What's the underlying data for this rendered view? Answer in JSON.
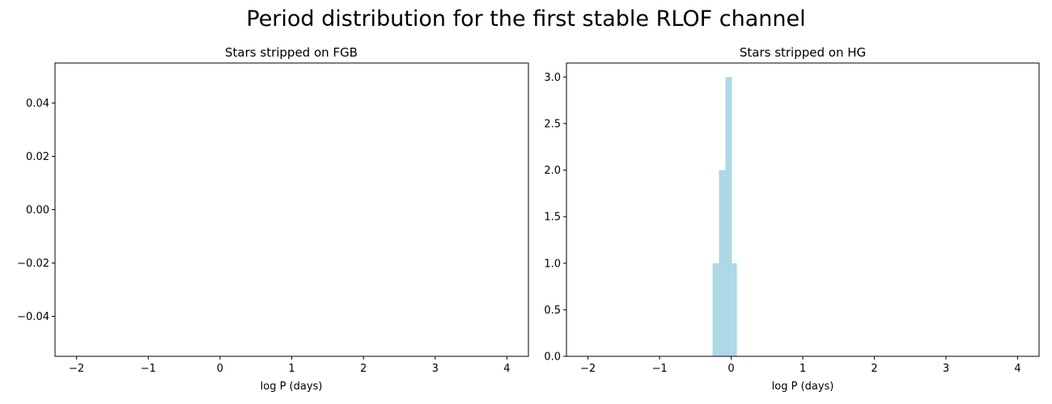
{
  "figure": {
    "title": "Period distribution for the first stable RLOF channel"
  },
  "chart_data": [
    {
      "type": "bar",
      "title": "Stars stripped on FGB",
      "xlabel": "log P (days)",
      "ylabel": "",
      "xlim": [
        -2.3,
        4.3
      ],
      "ylim": [
        -0.055,
        0.055
      ],
      "xticks": [
        -2,
        -1,
        0,
        1,
        2,
        3,
        4
      ],
      "yticks": [
        -0.04,
        -0.02,
        0.0,
        0.02,
        0.04
      ],
      "ytick_labels": [
        "−0.04",
        "−0.02",
        "0.00",
        "0.02",
        "0.04"
      ],
      "xtick_labels": [
        "−2",
        "−1",
        "0",
        "1",
        "2",
        "3",
        "4"
      ],
      "bar_color": "#add8e6",
      "bins": []
    },
    {
      "type": "bar",
      "title": "Stars stripped on HG",
      "xlabel": "log P (days)",
      "ylabel": "",
      "xlim": [
        -2.3,
        4.3
      ],
      "ylim": [
        0,
        3.15
      ],
      "xticks": [
        -2,
        -1,
        0,
        1,
        2,
        3,
        4
      ],
      "yticks": [
        0.0,
        0.5,
        1.0,
        1.5,
        2.0,
        2.5,
        3.0
      ],
      "ytick_labels": [
        "0.0",
        "0.5",
        "1.0",
        "1.5",
        "2.0",
        "2.5",
        "3.0"
      ],
      "xtick_labels": [
        "−2",
        "−1",
        "0",
        "1",
        "2",
        "3",
        "4"
      ],
      "bar_color": "#add8e6",
      "bins": [
        {
          "x0": -0.26,
          "x1": -0.17,
          "count": 1
        },
        {
          "x0": -0.17,
          "x1": -0.08,
          "count": 2
        },
        {
          "x0": -0.08,
          "x1": 0.01,
          "count": 3
        },
        {
          "x0": 0.01,
          "x1": 0.08,
          "count": 1
        }
      ]
    }
  ]
}
